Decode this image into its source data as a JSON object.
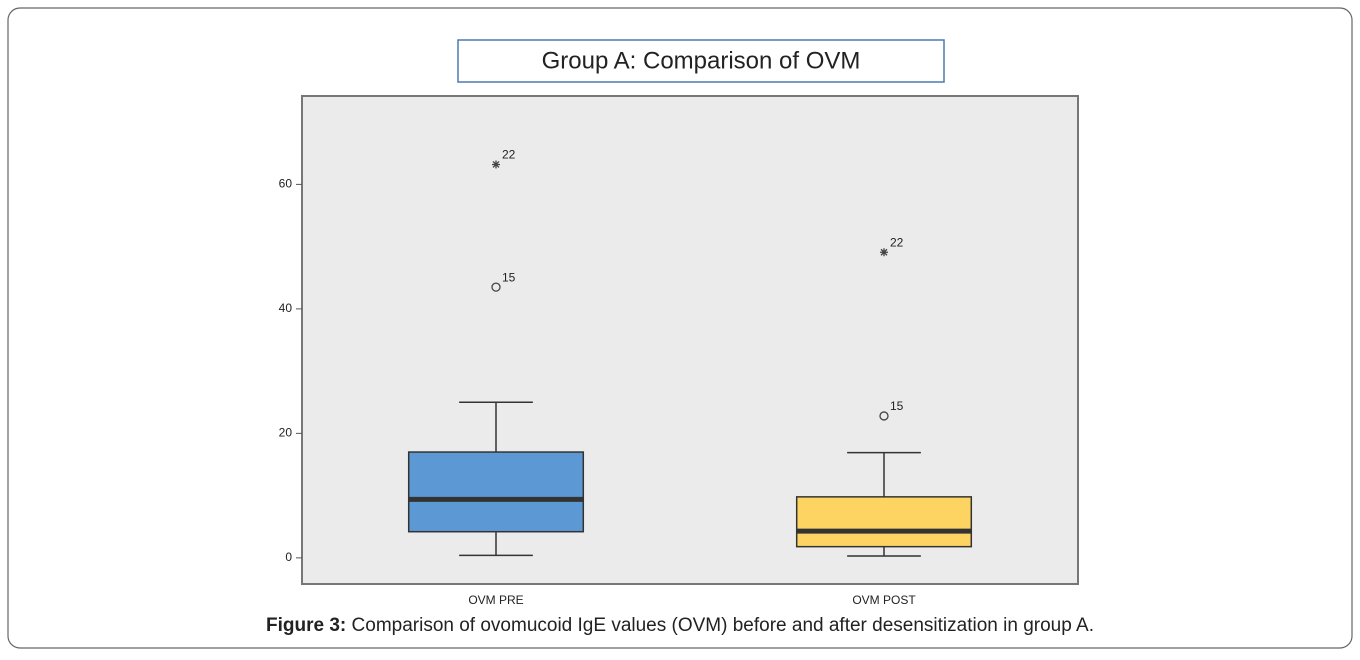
{
  "chart_data": {
    "type": "box",
    "title": "Group A: Comparison of OVM",
    "categories": [
      "OVM PRE",
      "OVM POST"
    ],
    "boxes": [
      {
        "color": "#5b98d4",
        "min": 0.4,
        "q1": 4.2,
        "median": 9.4,
        "q3": 17,
        "max": 25,
        "outliers": [
          {
            "value": 43.5,
            "label": "15",
            "marker": "circle"
          },
          {
            "value": 63.2,
            "label": "22",
            "marker": "star"
          }
        ]
      },
      {
        "color": "#fdd462",
        "min": 0.3,
        "q1": 1.8,
        "median": 4.3,
        "q3": 9.8,
        "max": 16.9,
        "outliers": [
          {
            "value": 22.8,
            "label": "15",
            "marker": "circle"
          },
          {
            "value": 49.1,
            "label": "22",
            "marker": "star"
          }
        ]
      }
    ],
    "ylim": [
      -4.2,
      74.2
    ],
    "yticks": [
      0,
      20,
      40,
      60
    ]
  },
  "caption": {
    "label": "Figure 3:",
    "text": "Comparison of ovomucoid IgE values (OVM) before and after desensitization in group A."
  }
}
